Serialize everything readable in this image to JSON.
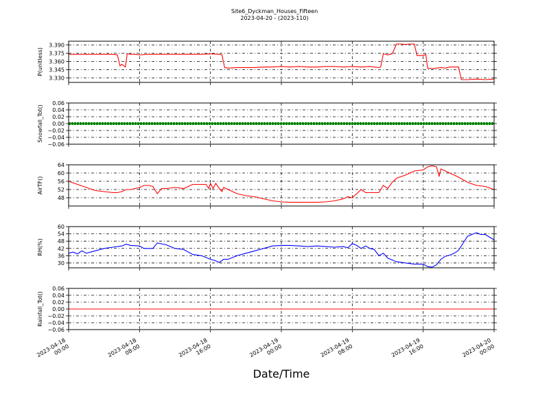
{
  "title_line1": "Site6_Dyckman_Houses_Fifteen",
  "title_line2": "2023-04-20 - (2023-110)",
  "xlabel": "Date/Time",
  "x_range": [
    "2023-04-18 00:00",
    "2023-04-20 00:00"
  ],
  "x_ticks": [
    {
      "top": "2023-04-18",
      "bottom": "00:00",
      "hour": 0
    },
    {
      "top": "2023-04-18",
      "bottom": "08:00",
      "hour": 8
    },
    {
      "top": "2023-04-18",
      "bottom": "16:00",
      "hour": 16
    },
    {
      "top": "2023-04-19",
      "bottom": "00:00",
      "hour": 24
    },
    {
      "top": "2023-04-19",
      "bottom": "08:00",
      "hour": 32
    },
    {
      "top": "2023-04-19",
      "bottom": "16:00",
      "hour": 40
    },
    {
      "top": "2023-04-20",
      "bottom": "00:00",
      "hour": 48
    }
  ],
  "chart_data": [
    {
      "type": "line",
      "ylabel": "P(unitless)",
      "color": "#ff0000",
      "ylim": [
        3.322,
        3.397
      ],
      "yticks": [
        "3.390",
        "3.375",
        "3.360",
        "3.345",
        "3.330"
      ],
      "ytick_values": [
        3.39,
        3.375,
        3.36,
        3.345,
        3.33
      ],
      "grid": true,
      "x_unit": "hours since 2023-04-18 00:00",
      "x": [
        0,
        1,
        2,
        3,
        4,
        5,
        5.5,
        5.8,
        6,
        6.4,
        6.6,
        7,
        7.5,
        8,
        9,
        10,
        11,
        12,
        13,
        14,
        15,
        16,
        17,
        17.3,
        17.6,
        18,
        19,
        20,
        21,
        22,
        23,
        24,
        25,
        26,
        27,
        28,
        29,
        30,
        31,
        32,
        33,
        34,
        35,
        35.2,
        35.5,
        36,
        36.5,
        37,
        37.5,
        38,
        38.5,
        39,
        39.3,
        39.8,
        40,
        40.3,
        40.5,
        41,
        41.5,
        42,
        42.5,
        43,
        44,
        44.3,
        45,
        46,
        47,
        48
      ],
      "y": [
        3.373,
        3.373,
        3.373,
        3.373,
        3.373,
        3.373,
        3.372,
        3.352,
        3.355,
        3.35,
        3.374,
        3.373,
        3.373,
        3.372,
        3.373,
        3.373,
        3.373,
        3.373,
        3.373,
        3.373,
        3.373,
        3.374,
        3.373,
        3.372,
        3.349,
        3.348,
        3.349,
        3.349,
        3.349,
        3.35,
        3.35,
        3.351,
        3.35,
        3.351,
        3.35,
        3.35,
        3.351,
        3.351,
        3.35,
        3.351,
        3.35,
        3.351,
        3.349,
        3.35,
        3.374,
        3.372,
        3.374,
        3.392,
        3.392,
        3.391,
        3.392,
        3.392,
        3.371,
        3.371,
        3.371,
        3.373,
        3.348,
        3.347,
        3.348,
        3.349,
        3.348,
        3.35,
        3.35,
        3.327,
        3.327,
        3.328,
        3.327,
        3.328
      ]
    },
    {
      "type": "line",
      "ylabel": "Snowfall_Tot()",
      "color": "#008000",
      "ylim": [
        -0.06,
        0.06
      ],
      "yticks": [
        "0.06",
        "0.04",
        "0.02",
        "0.00",
        "−0.02",
        "−0.04",
        "−0.06"
      ],
      "ytick_values": [
        0.06,
        0.04,
        0.02,
        0.0,
        -0.02,
        -0.04,
        -0.06
      ],
      "grid": true,
      "x_unit": "hours since 2023-04-18 00:00",
      "x": [
        0,
        48
      ],
      "y": [
        0.0,
        0.0
      ],
      "markers": true
    },
    {
      "type": "line",
      "ylabel": "AirTF()",
      "color": "#ff0000",
      "ylim": [
        44,
        64
      ],
      "yticks": [
        "64",
        "60",
        "56",
        "52",
        "48"
      ],
      "ytick_values": [
        64,
        60,
        56,
        52,
        48
      ],
      "grid": true,
      "x_unit": "hours since 2023-04-18 00:00",
      "x": [
        0,
        1,
        2,
        3,
        4,
        5,
        5.5,
        6,
        6.5,
        7,
        8,
        8.5,
        9,
        9.5,
        10,
        10.5,
        11,
        12,
        13,
        14,
        15,
        15.5,
        15.8,
        16,
        16.3,
        16.6,
        17,
        17.3,
        17.5,
        18,
        19,
        20,
        21,
        22,
        23,
        24,
        25,
        26,
        27,
        28,
        29,
        30,
        31,
        31.5,
        32,
        32.5,
        33,
        33.5,
        34,
        34.5,
        35,
        35.5,
        36,
        36.5,
        37,
        38,
        39,
        40,
        40.5,
        41,
        41.5,
        41.8,
        42,
        43,
        44,
        45,
        46,
        47,
        48
      ],
      "y": [
        56,
        54.5,
        53,
        51.5,
        51,
        50.5,
        50.5,
        51,
        52,
        52,
        53,
        54,
        54,
        53.5,
        50,
        52.5,
        52.5,
        53,
        52.5,
        54.5,
        54.5,
        54.5,
        52.5,
        55,
        52.5,
        55,
        52.5,
        51,
        53,
        52,
        50,
        49,
        48.5,
        47.5,
        46.5,
        46,
        45.8,
        45.8,
        45.8,
        45.8,
        46,
        46.5,
        47.5,
        48.5,
        48,
        50,
        52,
        50.5,
        50.5,
        50.5,
        50.5,
        54,
        52.5,
        55.5,
        57.5,
        59,
        61,
        61.5,
        63,
        63.5,
        63,
        58.5,
        62,
        60,
        58,
        55.5,
        54,
        53.5,
        52
      ]
    },
    {
      "type": "line",
      "ylabel": "RH(%)",
      "color": "#0000ff",
      "ylim": [
        26,
        60
      ],
      "yticks": [
        "60",
        "54",
        "48",
        "42",
        "36",
        "30"
      ],
      "ytick_values": [
        60,
        54,
        48,
        42,
        36,
        30
      ],
      "grid": true,
      "x_unit": "hours since 2023-04-18 00:00",
      "x": [
        0,
        0.5,
        1,
        1.5,
        2,
        3,
        4,
        5,
        6,
        6.5,
        7,
        8,
        8.5,
        9,
        9.5,
        10,
        11,
        12,
        12.5,
        13,
        14,
        15,
        16,
        16.5,
        17,
        17.5,
        18,
        19,
        20,
        21,
        22,
        23,
        24,
        25,
        26,
        27,
        28,
        29,
        30,
        31,
        31.5,
        32,
        32.5,
        33,
        33.5,
        34,
        34.5,
        35,
        35.5,
        36,
        37,
        38,
        39,
        40,
        40.5,
        41,
        41.5,
        42,
        42.5,
        43,
        43.5,
        44,
        45,
        45.5,
        46,
        46.5,
        47,
        48
      ],
      "y": [
        38,
        39,
        37.5,
        40,
        38,
        40,
        42,
        43,
        44,
        45.5,
        44.5,
        44,
        42,
        42,
        42,
        46.5,
        45,
        42,
        41.5,
        41,
        37,
        36,
        33,
        32,
        30.5,
        33,
        33,
        36,
        38,
        40,
        42,
        44,
        44.5,
        44.5,
        44,
        43.5,
        44,
        43.5,
        43,
        43.5,
        42.5,
        46,
        44.5,
        42,
        44,
        42,
        41,
        36,
        38,
        34,
        31,
        30,
        29,
        29,
        27,
        26.5,
        28.5,
        33,
        35.5,
        36.5,
        38,
        40.5,
        52,
        53.5,
        55,
        53.5,
        53.5,
        49
      ]
    },
    {
      "type": "line",
      "ylabel": "Rainfall_Tot()",
      "color": "#ff0000",
      "ylim": [
        -0.06,
        0.06
      ],
      "yticks": [
        "0.06",
        "0.04",
        "0.02",
        "0.00",
        "−0.02",
        "−0.04",
        "−0.06"
      ],
      "ytick_values": [
        0.06,
        0.04,
        0.02,
        0.0,
        -0.02,
        -0.04,
        -0.06
      ],
      "grid": true,
      "x_unit": "hours since 2023-04-18 00:00",
      "x": [
        0,
        48
      ],
      "y": [
        0.0,
        0.0
      ]
    }
  ]
}
